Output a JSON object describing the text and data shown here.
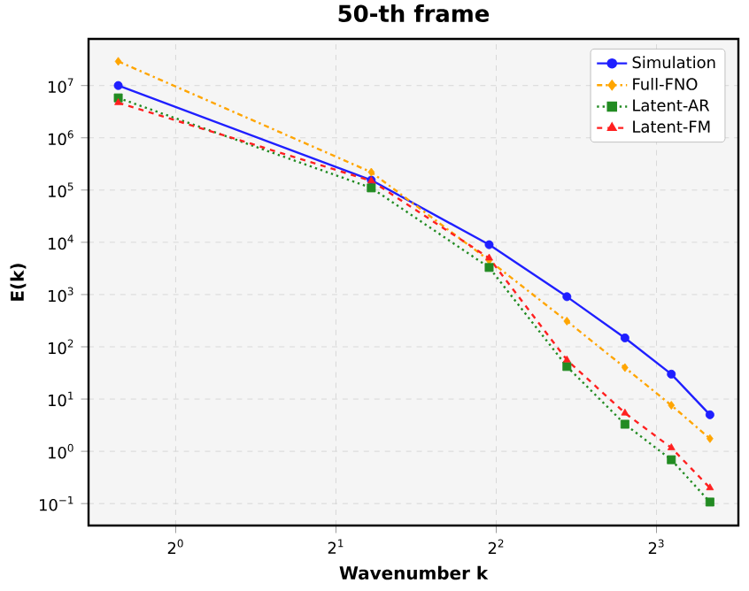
{
  "chart_data": {
    "type": "line",
    "title": "50-th frame",
    "xlabel": "Wavenumber k",
    "ylabel": "E(k)",
    "x": [
      0.78,
      2.33,
      3.88,
      5.43,
      6.98,
      8.53,
      10.08
    ],
    "series": [
      {
        "name": "Simulation",
        "color": "#1f1fff",
        "marker": "circle",
        "line_style": "solid",
        "values": [
          10000000.0,
          155000.0,
          9000.0,
          910,
          148,
          30,
          5.0
        ]
      },
      {
        "name": "Full-FNO",
        "color": "#ffa500",
        "marker": "diamond",
        "line_style": "dashdot",
        "values": [
          29000000.0,
          220000.0,
          4500.0,
          310,
          40,
          7.6,
          1.75
        ]
      },
      {
        "name": "Latent-AR",
        "color": "#228b22",
        "marker": "square",
        "line_style": "dotted",
        "values": [
          5800000.0,
          110000.0,
          3300.0,
          42,
          3.3,
          0.69,
          0.107
        ]
      },
      {
        "name": "Latent-FM",
        "color": "#ff2020",
        "marker": "triangle",
        "line_style": "dashed",
        "values": [
          4700000.0,
          150000.0,
          5000.0,
          56,
          5.4,
          1.17,
          0.2
        ]
      }
    ],
    "log": "xy",
    "xlim": [
      0.686,
      11.4
    ],
    "ylim": [
      0.038,
      78000000.0
    ],
    "xticks": [
      {
        "value": 1,
        "label": "2$^{0}$"
      },
      {
        "value": 2,
        "label": "2$^{1}$"
      },
      {
        "value": 4,
        "label": "2$^{2}$"
      },
      {
        "value": 8,
        "label": "2$^{3}$"
      }
    ],
    "yticks": [
      {
        "value": 0.1,
        "label": "10$^{−1}$"
      },
      {
        "value": 1,
        "label": "10$^{0}$"
      },
      {
        "value": 10,
        "label": "10$^{1}$"
      },
      {
        "value": 100,
        "label": "10$^{2}$"
      },
      {
        "value": 1000,
        "label": "10$^{3}$"
      },
      {
        "value": 10000,
        "label": "10$^{4}$"
      },
      {
        "value": 100000,
        "label": "10$^{5}$"
      },
      {
        "value": 1000000,
        "label": "10$^{6}$"
      },
      {
        "value": 10000000,
        "label": "10$^{7}$"
      }
    ],
    "grid": true,
    "legend": "top right"
  }
}
